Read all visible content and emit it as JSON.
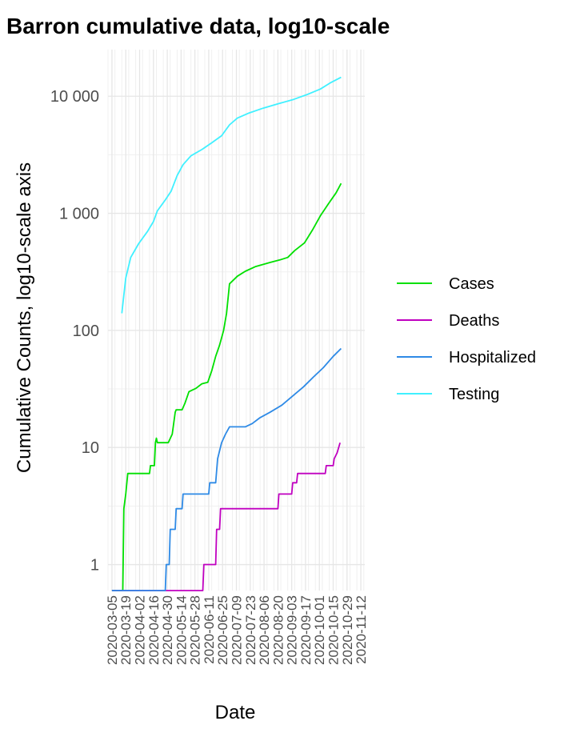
{
  "chart_data": {
    "type": "line",
    "title": "Barron cumulative data, log10-scale",
    "xlabel": "Date",
    "ylabel": "Cumulative Counts, log10-scale axis",
    "y_scale": "log10",
    "ylim": [
      0.6,
      25000
    ],
    "xlim": [
      "2020-03-01",
      "2020-11-16"
    ],
    "grid": true,
    "legend_position": "right",
    "y_ticks": [
      1,
      10,
      100,
      1000,
      10000
    ],
    "y_tick_labels": [
      "1",
      "10",
      "100",
      "1 000",
      "10 000"
    ],
    "x_ticks": [
      "2020-03-05",
      "2020-03-19",
      "2020-04-02",
      "2020-04-16",
      "2020-04-30",
      "2020-05-14",
      "2020-05-28",
      "2020-06-11",
      "2020-06-25",
      "2020-07-09",
      "2020-07-23",
      "2020-08-06",
      "2020-08-20",
      "2020-09-03",
      "2020-09-17",
      "2020-10-01",
      "2020-10-15",
      "2020-10-29",
      "2020-11-12"
    ],
    "series": [
      {
        "name": "Cases",
        "color": "#00e000",
        "points": [
          [
            "2020-03-05",
            0.6
          ],
          [
            "2020-03-16",
            0.6
          ],
          [
            "2020-03-17",
            3
          ],
          [
            "2020-03-19",
            4
          ],
          [
            "2020-03-21",
            6
          ],
          [
            "2020-04-12",
            6
          ],
          [
            "2020-04-13",
            7
          ],
          [
            "2020-04-17",
            7
          ],
          [
            "2020-04-18",
            11
          ],
          [
            "2020-04-19",
            12
          ],
          [
            "2020-04-20",
            11
          ],
          [
            "2020-05-01",
            11
          ],
          [
            "2020-05-05",
            13
          ],
          [
            "2020-05-08",
            20
          ],
          [
            "2020-05-09",
            21
          ],
          [
            "2020-05-15",
            21
          ],
          [
            "2020-05-18",
            24
          ],
          [
            "2020-05-22",
            30
          ],
          [
            "2020-05-29",
            32
          ],
          [
            "2020-06-04",
            35
          ],
          [
            "2020-06-10",
            36
          ],
          [
            "2020-06-14",
            45
          ],
          [
            "2020-06-18",
            60
          ],
          [
            "2020-06-22",
            75
          ],
          [
            "2020-06-26",
            100
          ],
          [
            "2020-06-29",
            140
          ],
          [
            "2020-07-02",
            250
          ],
          [
            "2020-07-10",
            290
          ],
          [
            "2020-07-18",
            320
          ],
          [
            "2020-07-28",
            350
          ],
          [
            "2020-08-12",
            380
          ],
          [
            "2020-08-22",
            400
          ],
          [
            "2020-08-30",
            420
          ],
          [
            "2020-09-06",
            480
          ],
          [
            "2020-09-16",
            560
          ],
          [
            "2020-09-24",
            720
          ],
          [
            "2020-10-02",
            950
          ],
          [
            "2020-10-10",
            1200
          ],
          [
            "2020-10-18",
            1500
          ],
          [
            "2020-10-23",
            1800
          ]
        ]
      },
      {
        "name": "Deaths",
        "color": "#c000c0",
        "points": [
          [
            "2020-03-05",
            0.6
          ],
          [
            "2020-06-05",
            0.6
          ],
          [
            "2020-06-06",
            1
          ],
          [
            "2020-06-18",
            1
          ],
          [
            "2020-06-19",
            2
          ],
          [
            "2020-06-22",
            2
          ],
          [
            "2020-06-23",
            3
          ],
          [
            "2020-08-20",
            3
          ],
          [
            "2020-08-21",
            4
          ],
          [
            "2020-09-03",
            4
          ],
          [
            "2020-09-04",
            5
          ],
          [
            "2020-09-08",
            5
          ],
          [
            "2020-09-09",
            6
          ],
          [
            "2020-10-07",
            6
          ],
          [
            "2020-10-08",
            7
          ],
          [
            "2020-10-15",
            7
          ],
          [
            "2020-10-16",
            8
          ],
          [
            "2020-10-19",
            9
          ],
          [
            "2020-10-22",
            11
          ]
        ]
      },
      {
        "name": "Hospitalized",
        "color": "#2e8ae6",
        "points": [
          [
            "2020-03-05",
            0.6
          ],
          [
            "2020-04-28",
            0.6
          ],
          [
            "2020-04-29",
            1
          ],
          [
            "2020-05-02",
            1
          ],
          [
            "2020-05-03",
            2
          ],
          [
            "2020-05-08",
            2
          ],
          [
            "2020-05-09",
            3
          ],
          [
            "2020-05-15",
            3
          ],
          [
            "2020-05-16",
            4
          ],
          [
            "2020-06-11",
            4
          ],
          [
            "2020-06-12",
            5
          ],
          [
            "2020-06-18",
            5
          ],
          [
            "2020-06-20",
            8
          ],
          [
            "2020-06-24",
            11
          ],
          [
            "2020-06-28",
            13
          ],
          [
            "2020-07-02",
            15
          ],
          [
            "2020-07-18",
            15
          ],
          [
            "2020-07-25",
            16
          ],
          [
            "2020-08-02",
            18
          ],
          [
            "2020-08-12",
            20
          ],
          [
            "2020-08-24",
            23
          ],
          [
            "2020-09-05",
            28
          ],
          [
            "2020-09-15",
            33
          ],
          [
            "2020-09-25",
            40
          ],
          [
            "2020-10-05",
            48
          ],
          [
            "2020-10-15",
            60
          ],
          [
            "2020-10-23",
            70
          ]
        ]
      },
      {
        "name": "Testing",
        "color": "#40f0ff",
        "points": [
          [
            "2020-03-15",
            140
          ],
          [
            "2020-03-17",
            200
          ],
          [
            "2020-03-19",
            280
          ],
          [
            "2020-03-24",
            420
          ],
          [
            "2020-04-01",
            550
          ],
          [
            "2020-04-10",
            700
          ],
          [
            "2020-04-16",
            850
          ],
          [
            "2020-04-20",
            1050
          ],
          [
            "2020-04-28",
            1300
          ],
          [
            "2020-05-04",
            1550
          ],
          [
            "2020-05-10",
            2100
          ],
          [
            "2020-05-16",
            2600
          ],
          [
            "2020-05-24",
            3100
          ],
          [
            "2020-06-04",
            3500
          ],
          [
            "2020-06-14",
            4000
          ],
          [
            "2020-06-24",
            4600
          ],
          [
            "2020-07-02",
            5700
          ],
          [
            "2020-07-10",
            6500
          ],
          [
            "2020-07-22",
            7200
          ],
          [
            "2020-08-05",
            7900
          ],
          [
            "2020-08-20",
            8600
          ],
          [
            "2020-09-05",
            9400
          ],
          [
            "2020-09-18",
            10300
          ],
          [
            "2020-10-02",
            11500
          ],
          [
            "2020-10-12",
            13000
          ],
          [
            "2020-10-23",
            14500
          ]
        ]
      }
    ]
  }
}
